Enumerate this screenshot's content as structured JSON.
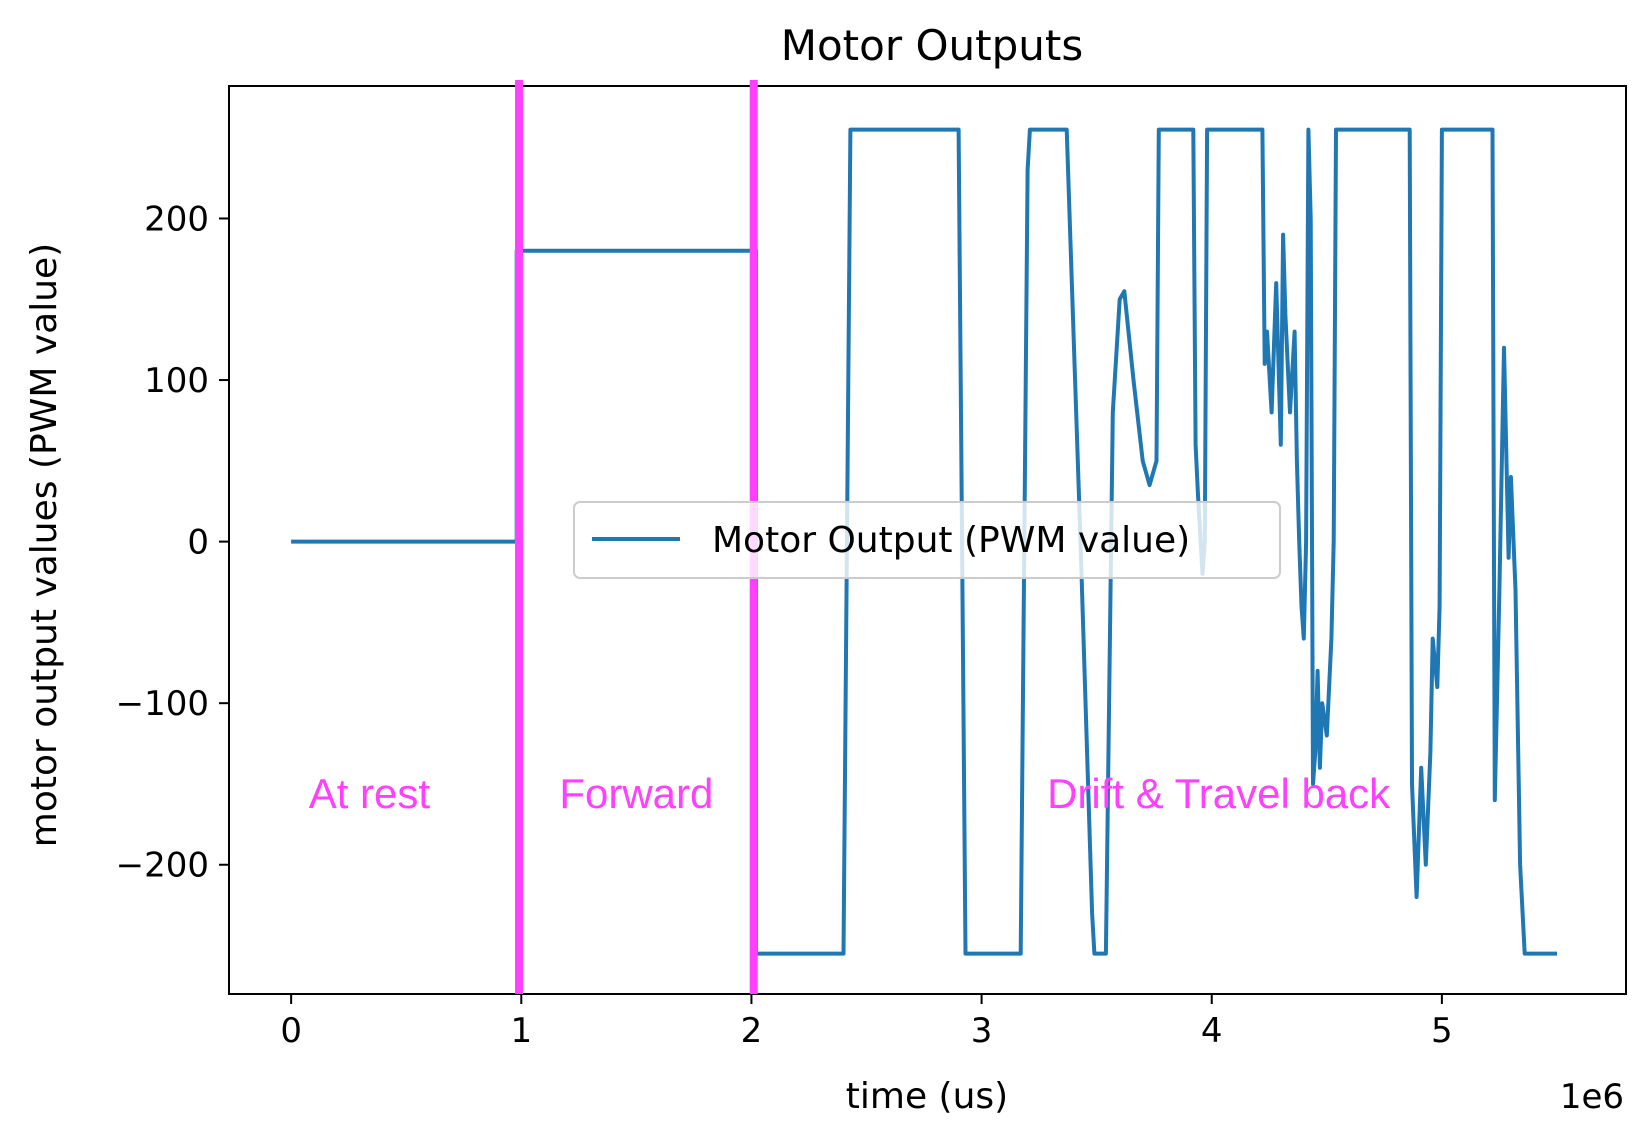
{
  "chart_data": {
    "type": "line",
    "title": "Motor Outputs",
    "xlabel": "time (us)",
    "ylabel": "motor output values (PWM value)",
    "x_scale_note": "1e6",
    "xlim": [
      -0.27,
      5.8
    ],
    "ylim": [
      -280,
      282
    ],
    "xticks": [
      0,
      1,
      2,
      3,
      4,
      5
    ],
    "yticks": [
      -200,
      -100,
      0,
      100,
      200
    ],
    "ytick_labels": [
      "−200",
      "−100",
      "0",
      "100",
      "200"
    ],
    "grid": false,
    "legend_position": "center",
    "colors": {
      "series": "#1f77b4",
      "marker": "#ff40ff"
    },
    "series": [
      {
        "name": "Motor Output (PWM value)",
        "points": [
          [
            0.0,
            0
          ],
          [
            0.98,
            0
          ],
          [
            0.98,
            180
          ],
          [
            2.0,
            180
          ],
          [
            2.02,
            180
          ],
          [
            2.02,
            -255
          ],
          [
            2.4,
            -255
          ],
          [
            2.43,
            255
          ],
          [
            2.9,
            255
          ],
          [
            2.93,
            -255
          ],
          [
            3.17,
            -255
          ],
          [
            3.2,
            230
          ],
          [
            3.21,
            255
          ],
          [
            3.37,
            255
          ],
          [
            3.43,
            0
          ],
          [
            3.48,
            -230
          ],
          [
            3.49,
            -255
          ],
          [
            3.54,
            -255
          ],
          [
            3.57,
            80
          ],
          [
            3.6,
            150
          ],
          [
            3.62,
            155
          ],
          [
            3.66,
            100
          ],
          [
            3.7,
            50
          ],
          [
            3.72,
            40
          ],
          [
            3.73,
            35
          ],
          [
            3.75,
            45
          ],
          [
            3.76,
            50
          ],
          [
            3.77,
            255
          ],
          [
            3.92,
            255
          ],
          [
            3.93,
            60
          ],
          [
            3.94,
            30
          ],
          [
            3.96,
            -20
          ],
          [
            3.97,
            0
          ],
          [
            3.98,
            255
          ],
          [
            4.22,
            255
          ],
          [
            4.23,
            110
          ],
          [
            4.24,
            130
          ],
          [
            4.26,
            80
          ],
          [
            4.28,
            160
          ],
          [
            4.3,
            60
          ],
          [
            4.31,
            190
          ],
          [
            4.32,
            140
          ],
          [
            4.34,
            80
          ],
          [
            4.36,
            130
          ],
          [
            4.37,
            50
          ],
          [
            4.38,
            0
          ],
          [
            4.39,
            -40
          ],
          [
            4.4,
            -60
          ],
          [
            4.41,
            0
          ],
          [
            4.42,
            255
          ],
          [
            4.43,
            200
          ],
          [
            4.44,
            -150
          ],
          [
            4.45,
            -130
          ],
          [
            4.46,
            -80
          ],
          [
            4.47,
            -140
          ],
          [
            4.48,
            -100
          ],
          [
            4.5,
            -120
          ],
          [
            4.52,
            -60
          ],
          [
            4.53,
            0
          ],
          [
            4.54,
            255
          ],
          [
            4.86,
            255
          ],
          [
            4.87,
            -150
          ],
          [
            4.89,
            -220
          ],
          [
            4.91,
            -140
          ],
          [
            4.93,
            -200
          ],
          [
            4.95,
            -130
          ],
          [
            4.96,
            -60
          ],
          [
            4.98,
            -90
          ],
          [
            4.99,
            -40
          ],
          [
            5.0,
            255
          ],
          [
            5.22,
            255
          ],
          [
            5.23,
            -160
          ],
          [
            5.25,
            -30
          ],
          [
            5.27,
            120
          ],
          [
            5.29,
            -10
          ],
          [
            5.3,
            40
          ],
          [
            5.32,
            -30
          ],
          [
            5.34,
            -200
          ],
          [
            5.36,
            -255
          ],
          [
            5.5,
            -255
          ]
        ]
      }
    ],
    "vertical_markers": [
      0.99,
      2.01
    ],
    "annotations": [
      {
        "text": "At rest",
        "x": 0.34,
        "y": -165
      },
      {
        "text": "Forward",
        "x": 1.5,
        "y": -165
      },
      {
        "text": "Drift & Travel back",
        "x": 4.03,
        "y": -165
      }
    ]
  }
}
